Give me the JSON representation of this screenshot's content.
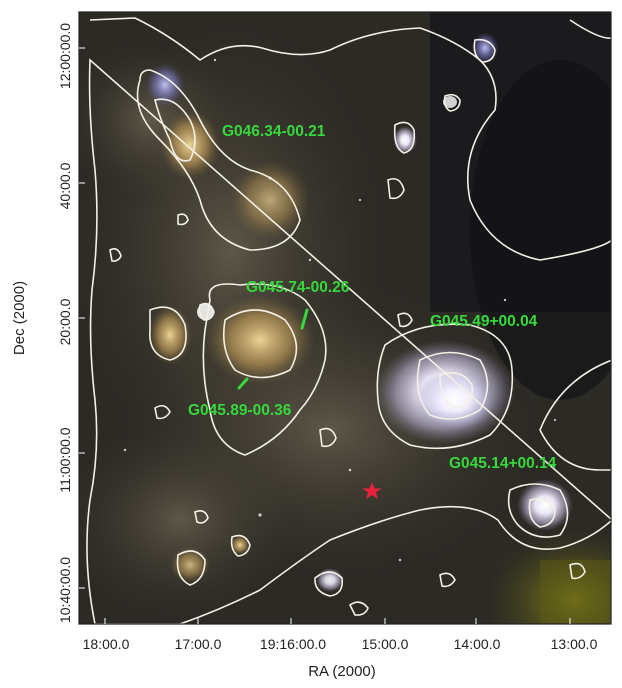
{
  "axes": {
    "x_title": "RA (2000)",
    "y_title": "Dec (2000)",
    "x_ticks": [
      "18:00.0",
      "17:00.0",
      "19:16:00.0",
      "15:00.0",
      "14:00.0",
      "13:00.0"
    ],
    "y_ticks": [
      "12:00:00.0",
      "40:00.0",
      "20:00.0",
      "11:00:00.0",
      "10:40:00.0"
    ]
  },
  "regions": [
    "G046.34-00.21",
    "G045.74-00.26",
    "G045.49+00.04",
    "G045.89-00.36",
    "G045.14+00.14"
  ],
  "colors": {
    "label_green": "#36d93b",
    "contour": "#f3f0e6",
    "marker_red": "#e8213a",
    "sky_background": "#2c2a25"
  },
  "marker_icon": "red-star-icon"
}
